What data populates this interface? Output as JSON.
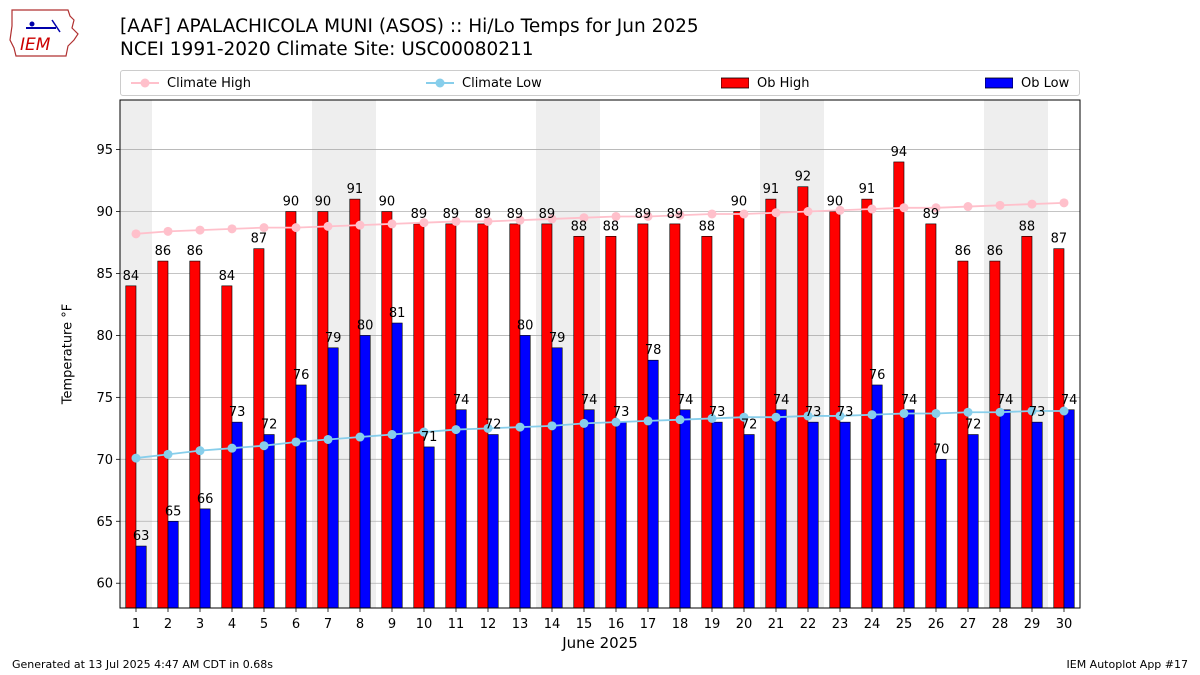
{
  "header": {
    "logo_text": "IEM",
    "title_line1": "[AAF] APALACHICOLA MUNI (ASOS) :: Hi/Lo Temps for Jun 2025",
    "title_line2": "NCEI 1991-2020 Climate Site: USC00080211"
  },
  "legend": {
    "climate_high": "Climate High",
    "climate_low": "Climate Low",
    "ob_high": "Ob High",
    "ob_low": "Ob Low"
  },
  "footer": {
    "left": "Generated at 13 Jul 2025 4:47 AM CDT in 0.68s",
    "right": "IEM Autoplot App #17"
  },
  "colors": {
    "ob_high": "#ff0000",
    "ob_low": "#0000ff",
    "climate_high": "#ffc0cb",
    "climate_low": "#87ceeb",
    "weekend_band": "#eeeeee"
  },
  "chart_data": {
    "type": "bar",
    "xlabel": "June 2025",
    "ylabel": "Temperature °F",
    "ylim": [
      58,
      99
    ],
    "yticks": [
      60,
      65,
      70,
      75,
      80,
      85,
      90,
      95
    ],
    "grid": true,
    "legend_position": "top",
    "categories": [
      1,
      2,
      3,
      4,
      5,
      6,
      7,
      8,
      9,
      10,
      11,
      12,
      13,
      14,
      15,
      16,
      17,
      18,
      19,
      20,
      21,
      22,
      23,
      24,
      25,
      26,
      27,
      28,
      29,
      30
    ],
    "shaded_days": [
      1,
      7,
      8,
      14,
      15,
      21,
      22,
      28,
      29
    ],
    "series": [
      {
        "name": "Ob High",
        "type": "bar",
        "values": [
          84,
          86,
          86,
          84,
          87,
          90,
          90,
          91,
          90,
          89,
          89,
          89,
          89,
          89,
          88,
          88,
          89,
          89,
          88,
          90,
          91,
          92,
          90,
          91,
          94,
          89,
          86,
          86,
          88,
          87
        ]
      },
      {
        "name": "Ob Low",
        "type": "bar",
        "values": [
          63,
          65,
          66,
          73,
          72,
          76,
          79,
          80,
          81,
          71,
          74,
          72,
          80,
          79,
          74,
          73,
          78,
          74,
          73,
          72,
          74,
          73,
          73,
          76,
          74,
          70,
          72,
          74,
          73,
          74
        ]
      },
      {
        "name": "Climate High",
        "type": "line",
        "values": [
          88.2,
          88.4,
          88.5,
          88.6,
          88.7,
          88.7,
          88.8,
          88.9,
          89.0,
          89.1,
          89.2,
          89.2,
          89.3,
          89.4,
          89.5,
          89.6,
          89.6,
          89.7,
          89.8,
          89.8,
          89.9,
          90.0,
          90.1,
          90.2,
          90.3,
          90.3,
          90.4,
          90.5,
          90.6,
          90.7
        ]
      },
      {
        "name": "Climate Low",
        "type": "line",
        "values": [
          70.1,
          70.4,
          70.7,
          70.9,
          71.1,
          71.4,
          71.6,
          71.8,
          72.0,
          72.2,
          72.4,
          72.5,
          72.6,
          72.7,
          72.9,
          73.0,
          73.1,
          73.2,
          73.3,
          73.4,
          73.4,
          73.5,
          73.5,
          73.6,
          73.7,
          73.7,
          73.8,
          73.8,
          73.9,
          73.9
        ]
      }
    ]
  }
}
